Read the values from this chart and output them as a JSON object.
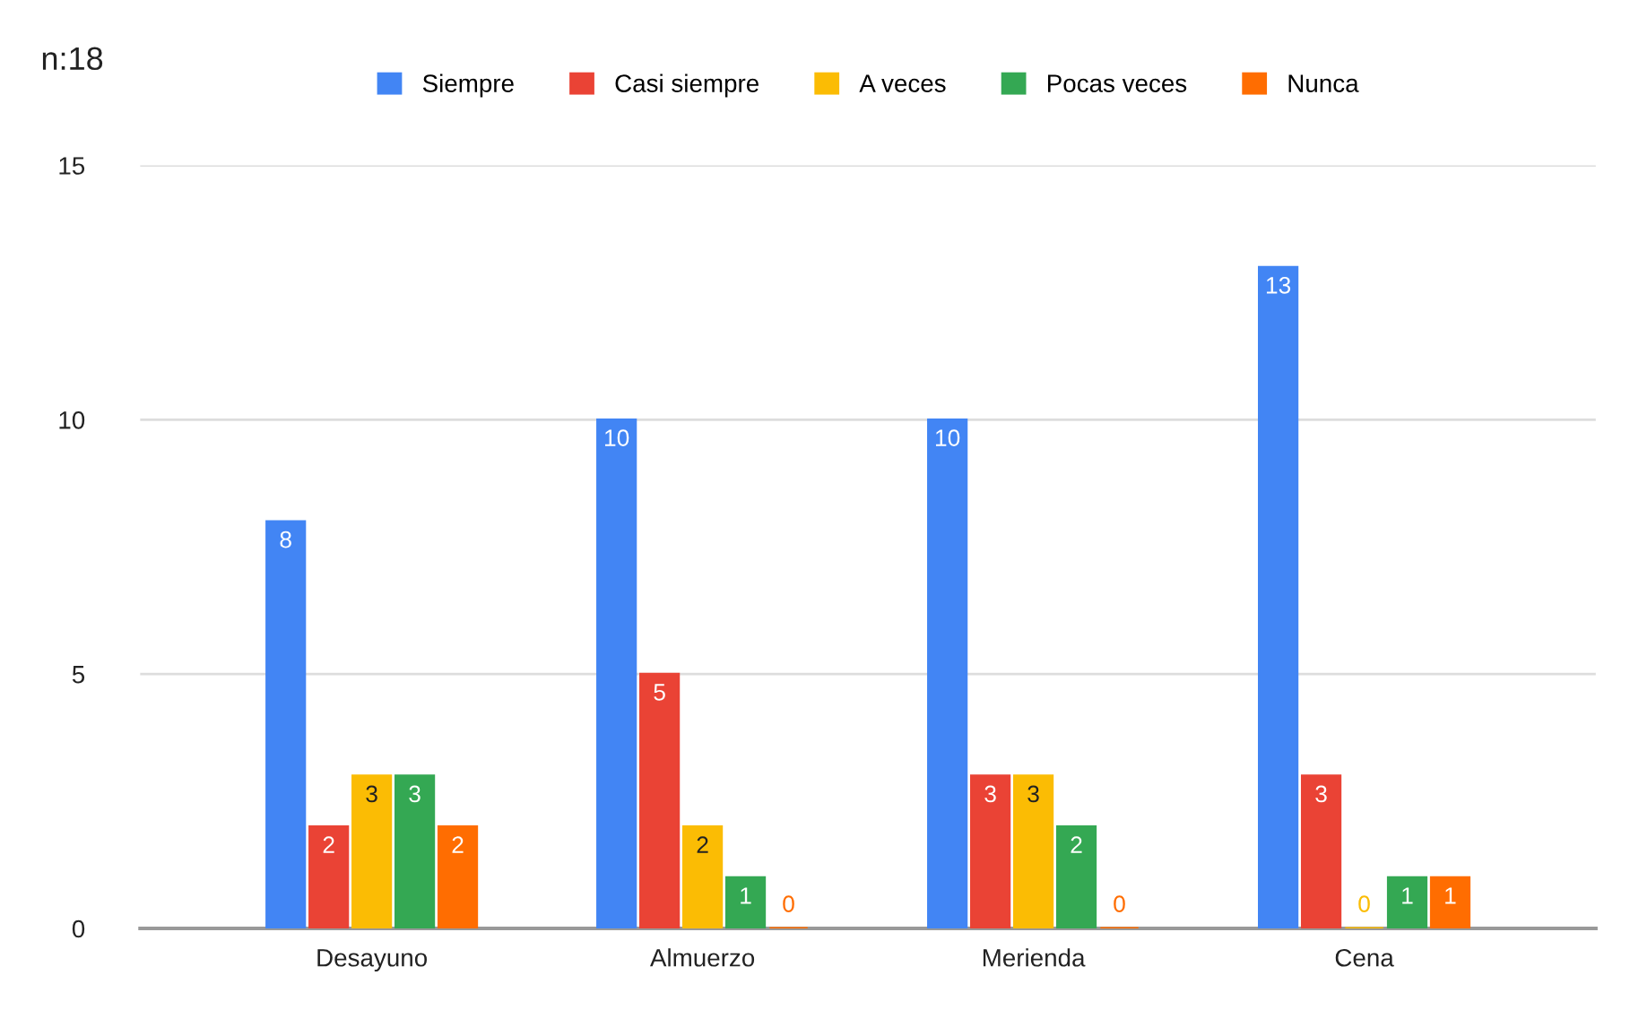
{
  "chart_data": {
    "type": "bar",
    "title": "n:18",
    "categories": [
      "Desayuno",
      "Almuerzo",
      "Merienda",
      "Cena"
    ],
    "series": [
      {
        "name": "Siempre",
        "color": "#4285f4",
        "values": [
          8,
          10,
          10,
          13
        ]
      },
      {
        "name": "Casi siempre",
        "color": "#ea4335",
        "values": [
          2,
          5,
          3,
          3
        ]
      },
      {
        "name": "A veces",
        "color": "#fbbc04",
        "values": [
          3,
          2,
          3,
          0
        ]
      },
      {
        "name": "Pocas veces",
        "color": "#34a853",
        "values": [
          3,
          1,
          2,
          1
        ]
      },
      {
        "name": "Nunca",
        "color": "#ff6d01",
        "values": [
          2,
          0,
          0,
          1
        ]
      }
    ],
    "ylim": [
      0,
      15
    ],
    "yticks": [
      0,
      5,
      10,
      15
    ],
    "grid": "y",
    "legend": "top",
    "data_labels": true
  }
}
